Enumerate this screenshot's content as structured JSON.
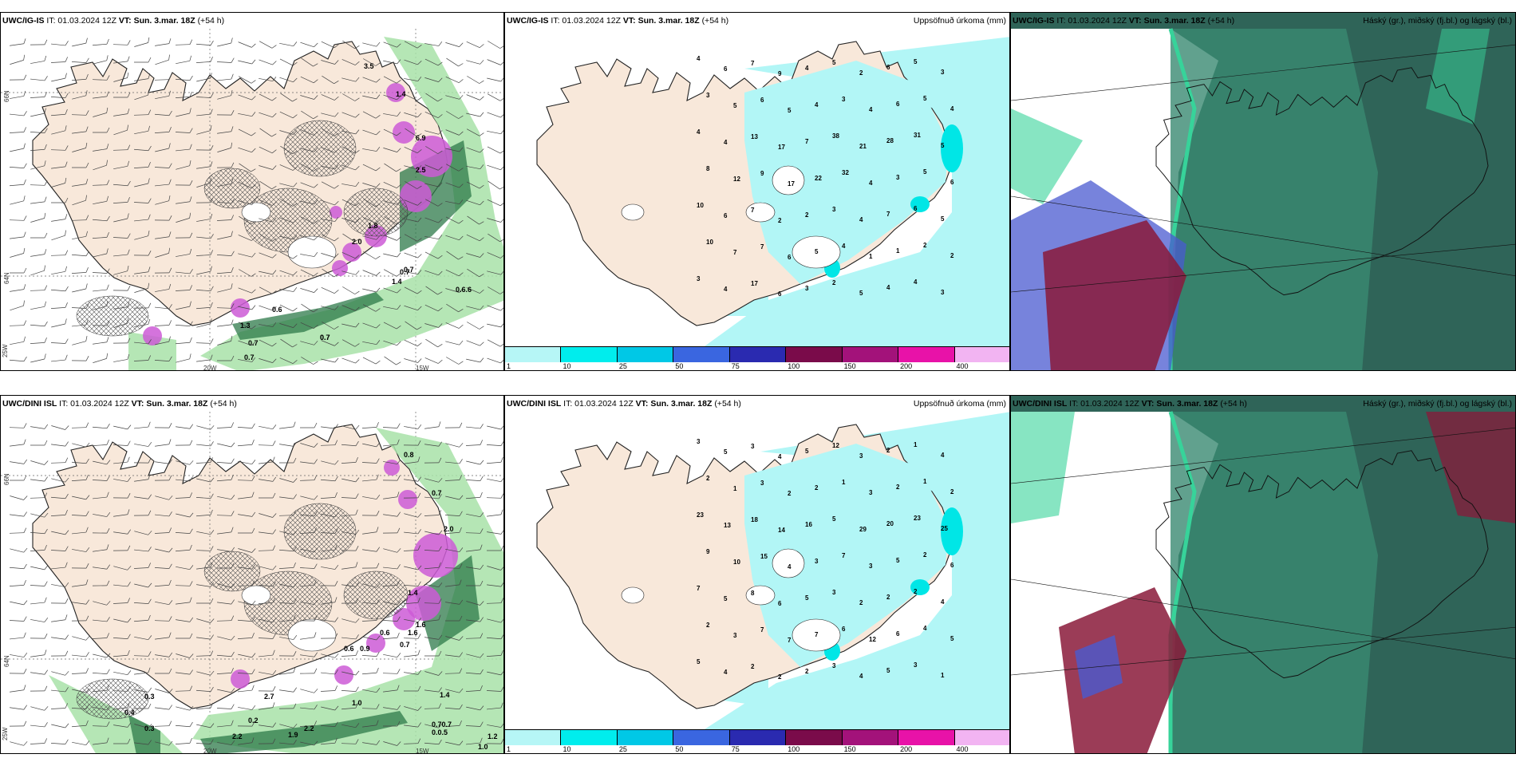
{
  "panels": [
    {
      "model": "UWC/IG-IS",
      "it": "IT: 01.03.2024 12Z",
      "vt_label": "VT:",
      "vt": "Sun. 3.mar. 18Z",
      "lead": "(+54 h)",
      "right": ""
    },
    {
      "model": "UWC/IG-IS",
      "it": "IT: 01.03.2024 12Z",
      "vt_label": "VT:",
      "vt": "Sun. 3.mar. 18Z",
      "lead": "(+54 h)",
      "right": "Uppsöfnuð úrkoma (mm)"
    },
    {
      "model": "UWC/IG-IS",
      "it": "IT: 01.03.2024 12Z",
      "vt_label": "VT:",
      "vt": "Sun. 3.mar. 18Z",
      "lead": "(+54 h)",
      "right": "Háský (gr.), miðský (fj.bl.) og lágský (bl.)"
    },
    {
      "model": "UWC/DINI ISL",
      "it": "IT: 01.03.2024 12Z",
      "vt_label": "VT:",
      "vt": "Sun. 3.mar. 18Z",
      "lead": "(+54 h)",
      "right": ""
    },
    {
      "model": "UWC/DINI ISL",
      "it": "IT: 01.03.2024 12Z",
      "vt_label": "VT:",
      "vt": "Sun. 3.mar. 18Z",
      "lead": "(+54 h)",
      "right": "Uppsöfnuð úrkoma (mm)"
    },
    {
      "model": "UWC/DINI ISL",
      "it": "IT: 01.03.2024 12Z",
      "vt_label": "VT:",
      "vt": "Sun. 3.mar. 18Z",
      "lead": "(+54 h)",
      "right": "Háský (gr.), miðský (fj.bl.) og lágský (bl.)"
    }
  ],
  "axes": {
    "lat_labels": [
      "66N",
      "64N",
      "25W"
    ],
    "lon_labels": [
      "20W",
      "15W"
    ]
  },
  "colorbar": {
    "labels": [
      "1",
      "10",
      "25",
      "50",
      "75",
      "100",
      "150",
      "200",
      "400"
    ],
    "colors": [
      "#b6f6f6",
      "#00eded",
      "#00c8e6",
      "#3a66e0",
      "#2a2ab0",
      "#7a0b4a",
      "#a3127a",
      "#e812a8",
      "#f2b4f2"
    ]
  },
  "colors": {
    "land": "#f8e8da",
    "sea": "#ffffff",
    "precip_light": "#b2f6f6",
    "precip_med": "#00e6e6",
    "wind_green_light": "#a8e2a8",
    "wind_green_dark": "#2e7a4a",
    "magenta": "#cc5ad6",
    "cloud_dark": "#2f6458",
    "cloud_mid": "#3a8a72",
    "cloud_green": "#37d39a",
    "cloud_blue": "#4a5ad0",
    "cloud_red": "#8a1a3a"
  },
  "labels": {
    "p1": [
      "3.5",
      "1.4",
      "6.9",
      "2.5",
      "0.6",
      "0.7",
      "0.7",
      "0.7",
      "0.7",
      "1.3",
      "0.7",
      "0.6.6",
      "0.7",
      "1.4",
      "2.0",
      "1.8"
    ],
    "p2": [
      "4",
      "6",
      "7",
      "9",
      "4",
      "5",
      "2",
      "6",
      "5",
      "3",
      "3",
      "5",
      "6",
      "5",
      "4",
      "3",
      "4",
      "6",
      "5",
      "4",
      "4",
      "4",
      "13",
      "17",
      "7",
      "38",
      "21",
      "28",
      "31",
      "5",
      "8",
      "12",
      "9",
      "17",
      "22",
      "32",
      "4",
      "3",
      "5",
      "6",
      "10",
      "6",
      "7",
      "2",
      "2",
      "3",
      "4",
      "7",
      "6",
      "5",
      "10",
      "7",
      "7",
      "6",
      "5",
      "4",
      "1",
      "1",
      "2",
      "2",
      "3",
      "4",
      "17",
      "6",
      "3",
      "2",
      "5",
      "4",
      "4",
      "3"
    ],
    "p4": [
      "0.8",
      "0.7",
      "2.0",
      "0.6",
      "1.4",
      "0.3",
      "0.4",
      "0.3",
      "2.2",
      "1.9",
      "2.2",
      "1.6",
      "1.0",
      "1.4",
      "0.70.7",
      "0.0.5",
      "1.2",
      "1.0",
      "0.7",
      "2.7",
      "0.2",
      "1.6",
      "0.9",
      "0.6"
    ],
    "p5": [
      "3",
      "5",
      "3",
      "4",
      "5",
      "12",
      "3",
      "2",
      "1",
      "4",
      "2",
      "1",
      "3",
      "2",
      "2",
      "1",
      "3",
      "2",
      "1",
      "2",
      "23",
      "13",
      "18",
      "14",
      "16",
      "5",
      "29",
      "20",
      "23",
      "25",
      "9",
      "10",
      "15",
      "4",
      "3",
      "7",
      "3",
      "5",
      "2",
      "6",
      "7",
      "5",
      "8",
      "6",
      "5",
      "3",
      "2",
      "2",
      "2",
      "4",
      "2",
      "3",
      "7",
      "7",
      "7",
      "6",
      "12",
      "6",
      "4",
      "5",
      "5",
      "4",
      "2",
      "2",
      "2",
      "3",
      "4",
      "5",
      "3",
      "1"
    ]
  }
}
